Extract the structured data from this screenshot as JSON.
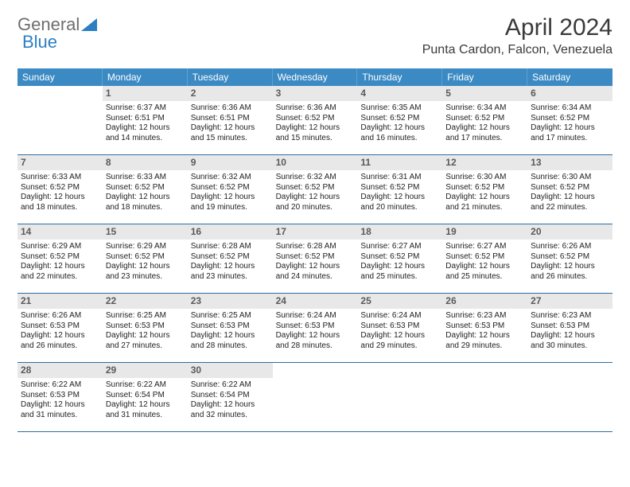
{
  "logo": {
    "part1": "General",
    "part2": "Blue"
  },
  "title": "April 2024",
  "location": "Punta Cardon, Falcon, Venezuela",
  "colors": {
    "header_bg": "#3b8ac4",
    "header_text": "#ffffff",
    "daynum_bg": "#e8e8e8",
    "week_border": "#2c6ea3",
    "logo_gray": "#6e6e6e",
    "logo_blue": "#2d7fc1"
  },
  "daysOfWeek": [
    "Sunday",
    "Monday",
    "Tuesday",
    "Wednesday",
    "Thursday",
    "Friday",
    "Saturday"
  ],
  "weeks": [
    [
      {
        "num": "",
        "sunrise": "",
        "sunset": "",
        "daylight1": "",
        "daylight2": ""
      },
      {
        "num": "1",
        "sunrise": "Sunrise: 6:37 AM",
        "sunset": "Sunset: 6:51 PM",
        "daylight1": "Daylight: 12 hours",
        "daylight2": "and 14 minutes."
      },
      {
        "num": "2",
        "sunrise": "Sunrise: 6:36 AM",
        "sunset": "Sunset: 6:51 PM",
        "daylight1": "Daylight: 12 hours",
        "daylight2": "and 15 minutes."
      },
      {
        "num": "3",
        "sunrise": "Sunrise: 6:36 AM",
        "sunset": "Sunset: 6:52 PM",
        "daylight1": "Daylight: 12 hours",
        "daylight2": "and 15 minutes."
      },
      {
        "num": "4",
        "sunrise": "Sunrise: 6:35 AM",
        "sunset": "Sunset: 6:52 PM",
        "daylight1": "Daylight: 12 hours",
        "daylight2": "and 16 minutes."
      },
      {
        "num": "5",
        "sunrise": "Sunrise: 6:34 AM",
        "sunset": "Sunset: 6:52 PM",
        "daylight1": "Daylight: 12 hours",
        "daylight2": "and 17 minutes."
      },
      {
        "num": "6",
        "sunrise": "Sunrise: 6:34 AM",
        "sunset": "Sunset: 6:52 PM",
        "daylight1": "Daylight: 12 hours",
        "daylight2": "and 17 minutes."
      }
    ],
    [
      {
        "num": "7",
        "sunrise": "Sunrise: 6:33 AM",
        "sunset": "Sunset: 6:52 PM",
        "daylight1": "Daylight: 12 hours",
        "daylight2": "and 18 minutes."
      },
      {
        "num": "8",
        "sunrise": "Sunrise: 6:33 AM",
        "sunset": "Sunset: 6:52 PM",
        "daylight1": "Daylight: 12 hours",
        "daylight2": "and 18 minutes."
      },
      {
        "num": "9",
        "sunrise": "Sunrise: 6:32 AM",
        "sunset": "Sunset: 6:52 PM",
        "daylight1": "Daylight: 12 hours",
        "daylight2": "and 19 minutes."
      },
      {
        "num": "10",
        "sunrise": "Sunrise: 6:32 AM",
        "sunset": "Sunset: 6:52 PM",
        "daylight1": "Daylight: 12 hours",
        "daylight2": "and 20 minutes."
      },
      {
        "num": "11",
        "sunrise": "Sunrise: 6:31 AM",
        "sunset": "Sunset: 6:52 PM",
        "daylight1": "Daylight: 12 hours",
        "daylight2": "and 20 minutes."
      },
      {
        "num": "12",
        "sunrise": "Sunrise: 6:30 AM",
        "sunset": "Sunset: 6:52 PM",
        "daylight1": "Daylight: 12 hours",
        "daylight2": "and 21 minutes."
      },
      {
        "num": "13",
        "sunrise": "Sunrise: 6:30 AM",
        "sunset": "Sunset: 6:52 PM",
        "daylight1": "Daylight: 12 hours",
        "daylight2": "and 22 minutes."
      }
    ],
    [
      {
        "num": "14",
        "sunrise": "Sunrise: 6:29 AM",
        "sunset": "Sunset: 6:52 PM",
        "daylight1": "Daylight: 12 hours",
        "daylight2": "and 22 minutes."
      },
      {
        "num": "15",
        "sunrise": "Sunrise: 6:29 AM",
        "sunset": "Sunset: 6:52 PM",
        "daylight1": "Daylight: 12 hours",
        "daylight2": "and 23 minutes."
      },
      {
        "num": "16",
        "sunrise": "Sunrise: 6:28 AM",
        "sunset": "Sunset: 6:52 PM",
        "daylight1": "Daylight: 12 hours",
        "daylight2": "and 23 minutes."
      },
      {
        "num": "17",
        "sunrise": "Sunrise: 6:28 AM",
        "sunset": "Sunset: 6:52 PM",
        "daylight1": "Daylight: 12 hours",
        "daylight2": "and 24 minutes."
      },
      {
        "num": "18",
        "sunrise": "Sunrise: 6:27 AM",
        "sunset": "Sunset: 6:52 PM",
        "daylight1": "Daylight: 12 hours",
        "daylight2": "and 25 minutes."
      },
      {
        "num": "19",
        "sunrise": "Sunrise: 6:27 AM",
        "sunset": "Sunset: 6:52 PM",
        "daylight1": "Daylight: 12 hours",
        "daylight2": "and 25 minutes."
      },
      {
        "num": "20",
        "sunrise": "Sunrise: 6:26 AM",
        "sunset": "Sunset: 6:52 PM",
        "daylight1": "Daylight: 12 hours",
        "daylight2": "and 26 minutes."
      }
    ],
    [
      {
        "num": "21",
        "sunrise": "Sunrise: 6:26 AM",
        "sunset": "Sunset: 6:53 PM",
        "daylight1": "Daylight: 12 hours",
        "daylight2": "and 26 minutes."
      },
      {
        "num": "22",
        "sunrise": "Sunrise: 6:25 AM",
        "sunset": "Sunset: 6:53 PM",
        "daylight1": "Daylight: 12 hours",
        "daylight2": "and 27 minutes."
      },
      {
        "num": "23",
        "sunrise": "Sunrise: 6:25 AM",
        "sunset": "Sunset: 6:53 PM",
        "daylight1": "Daylight: 12 hours",
        "daylight2": "and 28 minutes."
      },
      {
        "num": "24",
        "sunrise": "Sunrise: 6:24 AM",
        "sunset": "Sunset: 6:53 PM",
        "daylight1": "Daylight: 12 hours",
        "daylight2": "and 28 minutes."
      },
      {
        "num": "25",
        "sunrise": "Sunrise: 6:24 AM",
        "sunset": "Sunset: 6:53 PM",
        "daylight1": "Daylight: 12 hours",
        "daylight2": "and 29 minutes."
      },
      {
        "num": "26",
        "sunrise": "Sunrise: 6:23 AM",
        "sunset": "Sunset: 6:53 PM",
        "daylight1": "Daylight: 12 hours",
        "daylight2": "and 29 minutes."
      },
      {
        "num": "27",
        "sunrise": "Sunrise: 6:23 AM",
        "sunset": "Sunset: 6:53 PM",
        "daylight1": "Daylight: 12 hours",
        "daylight2": "and 30 minutes."
      }
    ],
    [
      {
        "num": "28",
        "sunrise": "Sunrise: 6:22 AM",
        "sunset": "Sunset: 6:53 PM",
        "daylight1": "Daylight: 12 hours",
        "daylight2": "and 31 minutes."
      },
      {
        "num": "29",
        "sunrise": "Sunrise: 6:22 AM",
        "sunset": "Sunset: 6:54 PM",
        "daylight1": "Daylight: 12 hours",
        "daylight2": "and 31 minutes."
      },
      {
        "num": "30",
        "sunrise": "Sunrise: 6:22 AM",
        "sunset": "Sunset: 6:54 PM",
        "daylight1": "Daylight: 12 hours",
        "daylight2": "and 32 minutes."
      },
      {
        "num": "",
        "sunrise": "",
        "sunset": "",
        "daylight1": "",
        "daylight2": ""
      },
      {
        "num": "",
        "sunrise": "",
        "sunset": "",
        "daylight1": "",
        "daylight2": ""
      },
      {
        "num": "",
        "sunrise": "",
        "sunset": "",
        "daylight1": "",
        "daylight2": ""
      },
      {
        "num": "",
        "sunrise": "",
        "sunset": "",
        "daylight1": "",
        "daylight2": ""
      }
    ]
  ]
}
